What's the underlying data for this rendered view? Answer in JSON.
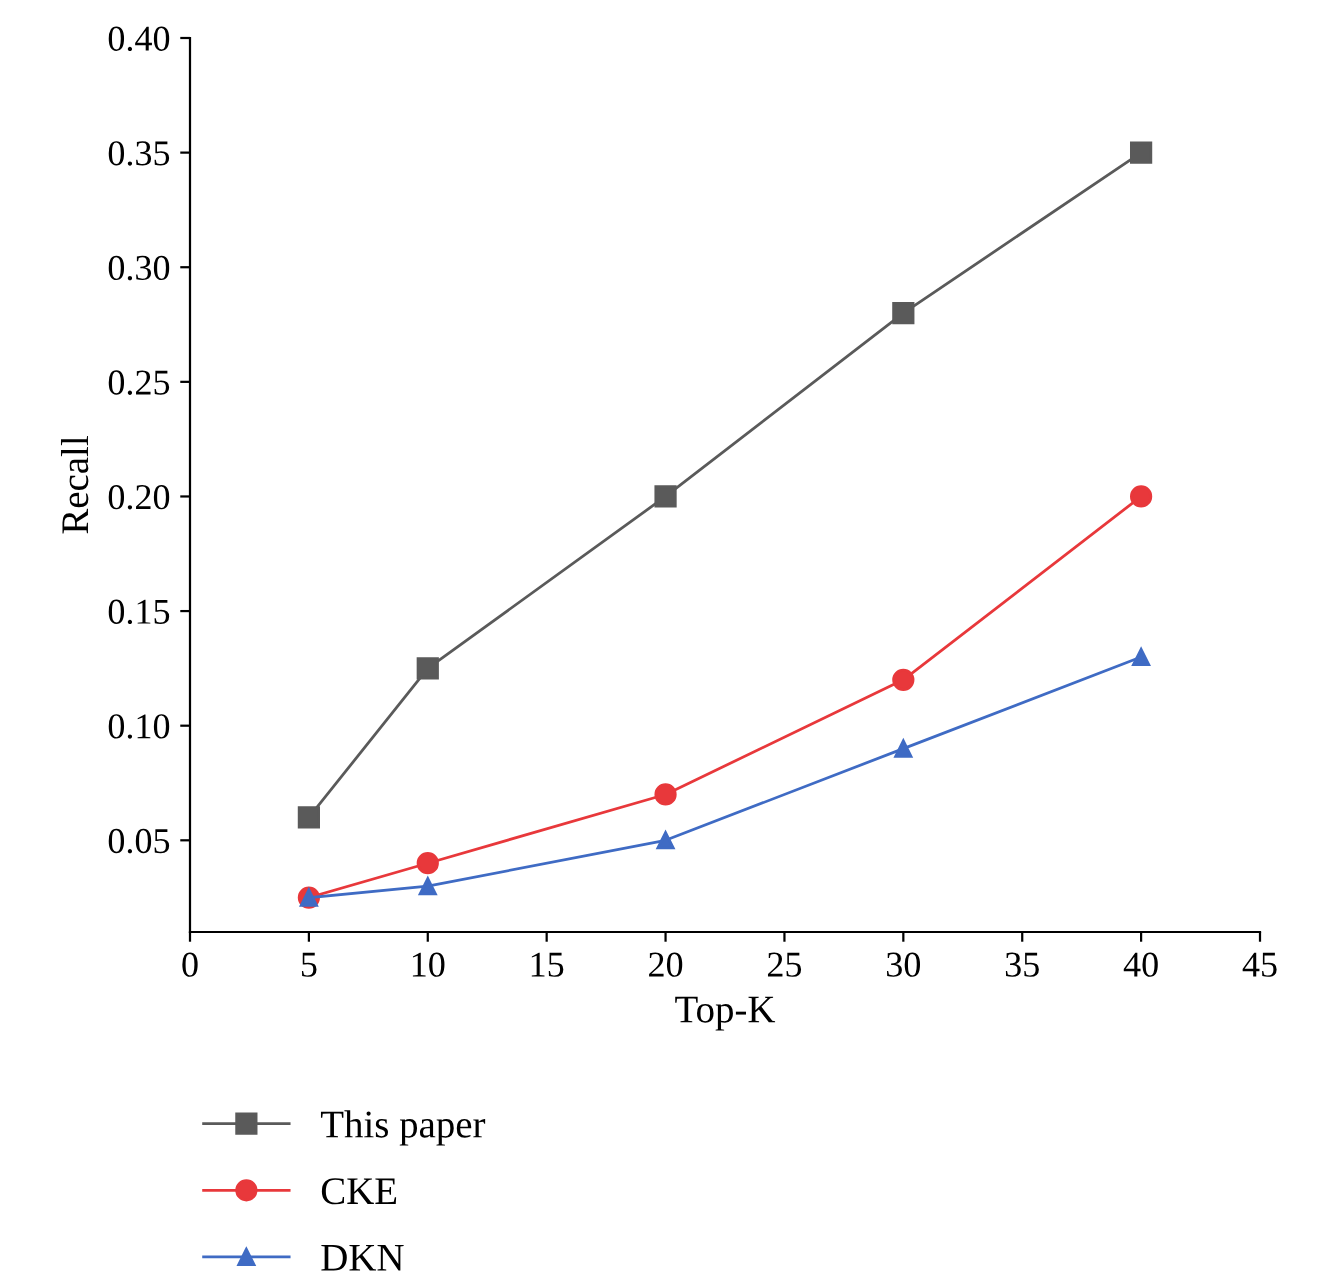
{
  "chart_data": {
    "type": "line",
    "xlabel": "Top-K",
    "ylabel": "Recall",
    "x": [
      5,
      10,
      20,
      30,
      40
    ],
    "series": [
      {
        "name": "This paper",
        "color": "#5a5a5a",
        "marker": "square",
        "values": [
          0.06,
          0.125,
          0.2,
          0.28,
          0.35
        ]
      },
      {
        "name": "CKE",
        "color": "#e8383b",
        "marker": "circle",
        "values": [
          0.025,
          0.04,
          0.07,
          0.12,
          0.2
        ]
      },
      {
        "name": "DKN",
        "color": "#3f6bc4",
        "marker": "triangle",
        "values": [
          0.025,
          0.03,
          0.05,
          0.09,
          0.13
        ]
      }
    ],
    "xlim": [
      0,
      45
    ],
    "xticks": [
      0,
      5,
      10,
      15,
      20,
      25,
      30,
      35,
      40,
      45
    ],
    "ylim": [
      0.01,
      0.4
    ],
    "yticks": [
      {
        "value": 0.05,
        "label": "0.05"
      },
      {
        "value": 0.1,
        "label": "0.10"
      },
      {
        "value": 0.15,
        "label": "0.15"
      },
      {
        "value": 0.2,
        "label": "0.20"
      },
      {
        "value": 0.25,
        "label": "0.25"
      },
      {
        "value": 0.3,
        "label": "0.30"
      },
      {
        "value": 0.35,
        "label": "0.35"
      },
      {
        "value": 0.4,
        "label": "0.40"
      }
    ],
    "grid": false,
    "legend": "bottom",
    "line_style": "solid"
  }
}
